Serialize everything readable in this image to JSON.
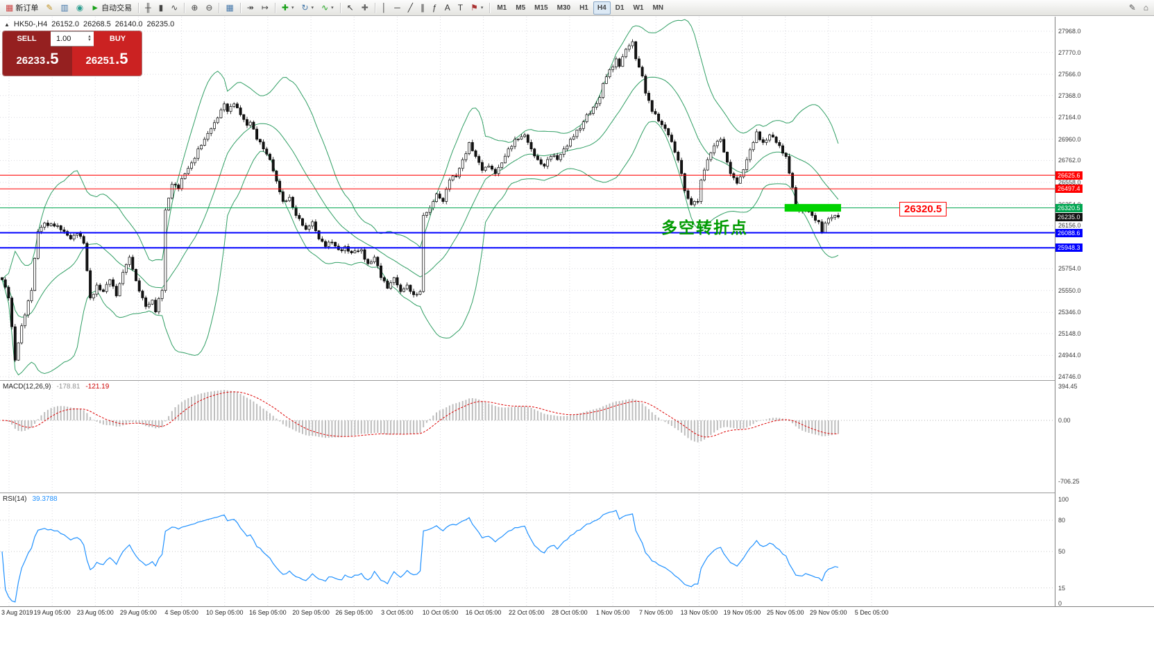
{
  "toolbar": {
    "left_items": [
      {
        "kind": "button",
        "name": "new-order-button",
        "icon": "order-ticket-icon",
        "glyph": "▦",
        "color": "#cc4444",
        "label": "新订单"
      },
      {
        "kind": "button",
        "name": "metaeditor-button",
        "icon": "pencil-icon",
        "glyph": "✎",
        "color": "#c09020"
      },
      {
        "kind": "button",
        "name": "market-watch-button",
        "icon": "chart-search-icon",
        "glyph": "▥",
        "color": "#4477aa"
      },
      {
        "kind": "button",
        "name": "community-button",
        "icon": "globe-icon",
        "glyph": "◉",
        "color": "#2a9d8f"
      },
      {
        "kind": "button",
        "name": "autotrade-button",
        "icon": "play-icon",
        "glyph": "►",
        "color": "#18a018",
        "label": "自动交易"
      },
      {
        "kind": "sep"
      },
      {
        "kind": "button",
        "name": "bar-chart-mode-button",
        "icon": "bar-chart-icon",
        "glyph": "╫",
        "color": "#444444"
      },
      {
        "kind": "button",
        "name": "candlestick-mode-button",
        "icon": "candlestick-icon",
        "glyph": "▮",
        "color": "#444444"
      },
      {
        "kind": "button",
        "name": "line-chart-mode-button",
        "icon": "line-chart-icon",
        "glyph": "∿",
        "color": "#444444"
      },
      {
        "kind": "sep"
      },
      {
        "kind": "button",
        "name": "zoom-in-button",
        "icon": "zoom-in-icon",
        "glyph": "⊕",
        "color": "#444444"
      },
      {
        "kind": "button",
        "name": "zoom-out-button",
        "icon": "zoom-out-icon",
        "glyph": "⊖",
        "color": "#444444"
      },
      {
        "kind": "sep"
      },
      {
        "kind": "button",
        "name": "tile-windows-button",
        "icon": "grid-icon",
        "glyph": "▦",
        "color": "#4477aa"
      },
      {
        "kind": "sep"
      },
      {
        "kind": "button",
        "name": "auto-scroll-button",
        "icon": "auto-scroll-icon",
        "glyph": "↠",
        "color": "#444444"
      },
      {
        "kind": "button",
        "name": "chart-shift-button",
        "icon": "chart-shift-icon",
        "glyph": "↦",
        "color": "#444444"
      },
      {
        "kind": "sep"
      },
      {
        "kind": "button",
        "name": "new-chart-button",
        "icon": "plus-icon",
        "glyph": "✚",
        "color": "#18a018",
        "dropdown": true
      },
      {
        "kind": "button",
        "name": "profiles-button",
        "icon": "profiles-icon",
        "glyph": "↻",
        "color": "#4477aa",
        "dropdown": true
      },
      {
        "kind": "button",
        "name": "indicators-button",
        "icon": "indicator-wave-icon",
        "glyph": "∿",
        "color": "#18a018",
        "dropdown": true
      },
      {
        "kind": "sep"
      },
      {
        "kind": "button",
        "name": "cursor-button",
        "icon": "cursor-icon",
        "glyph": "↖",
        "color": "#333333"
      },
      {
        "kind": "button",
        "name": "crosshair-button",
        "icon": "crosshair-icon",
        "glyph": "✚",
        "color": "#666666"
      },
      {
        "kind": "sep"
      },
      {
        "kind": "button",
        "name": "vertical-line-button",
        "icon": "vertical-line-icon",
        "glyph": "│",
        "color": "#333333"
      },
      {
        "kind": "button",
        "name": "horizontal-line-button",
        "icon": "horizontal-line-icon",
        "glyph": "─",
        "color": "#333333"
      },
      {
        "kind": "button",
        "name": "trendline-button",
        "icon": "trendline-icon",
        "glyph": "╱",
        "color": "#333333"
      },
      {
        "kind": "button",
        "name": "channel-button",
        "icon": "channel-icon",
        "glyph": "∥",
        "color": "#333333"
      },
      {
        "kind": "button",
        "name": "fibonacci-button",
        "icon": "fibonacci-icon",
        "glyph": "ƒ",
        "color": "#333333"
      },
      {
        "kind": "button",
        "name": "text-button",
        "icon": "text-icon",
        "glyph": "A",
        "color": "#333333"
      },
      {
        "kind": "button",
        "name": "label-button",
        "icon": "label-icon",
        "glyph": "T",
        "color": "#333333"
      },
      {
        "kind": "button",
        "name": "arrows-button",
        "icon": "flag-icon",
        "glyph": "⚑",
        "color": "#aa3333",
        "dropdown": true
      },
      {
        "kind": "sep"
      }
    ],
    "timeframes": [
      "M1",
      "M5",
      "M15",
      "M30",
      "H1",
      "H4",
      "D1",
      "W1",
      "MN"
    ],
    "active_timeframe": "H4",
    "right_items": [
      {
        "kind": "button",
        "name": "toolbar-extra-edit-button",
        "icon": "pencil-icon",
        "glyph": "✎",
        "color": "#555555"
      },
      {
        "kind": "button",
        "name": "toolbar-extra-home-button",
        "icon": "home-icon",
        "glyph": "⌂",
        "color": "#555555"
      }
    ]
  },
  "chart": {
    "title": {
      "marker": "▲",
      "symbol": "HK50-,H4",
      "open": "26152.0",
      "high": "26268.5",
      "low": "26140.0",
      "close": "26235.0"
    },
    "trade_panel": {
      "sell_label": "SELL",
      "buy_label": "BUY",
      "lot_value": "1.00",
      "sell_price_base": "26233",
      "sell_price_frac": ".5",
      "buy_price_base": "26251",
      "buy_price_frac": ".5"
    },
    "annotation": {
      "text": "多空转折点",
      "color": "#009b00"
    },
    "callout": {
      "text": "26320.5",
      "color": "#ff0000"
    },
    "y_axis_labels": [
      "27968.0",
      "27770.0",
      "27566.0",
      "27368.0",
      "27164.0",
      "26960.0",
      "26762.0",
      "26558.0",
      "26354.0",
      "26156.0",
      "25952.0",
      "25754.0",
      "25550.0",
      "25346.0",
      "25148.0",
      "24944.0",
      "24746.0"
    ],
    "hlines": [
      {
        "label": "26625.6",
        "price": 26625.6,
        "color": "#ff0000",
        "width": 1
      },
      {
        "label": "26497.4",
        "price": 26497.4,
        "color": "#ff0000",
        "width": 1
      },
      {
        "label": "26320.5",
        "price": 26320.5,
        "color": "#00a651",
        "width": 1
      },
      {
        "label": "26088.6",
        "price": 26088.6,
        "color": "#0000ff",
        "width": 2
      },
      {
        "label": "25948.3",
        "price": 25948.3,
        "color": "#0000ff",
        "width": 2
      }
    ],
    "current_price_tag": {
      "label": "26235.0",
      "price": 26235.0,
      "color": "#111111"
    },
    "highlight_bar": {
      "price": 26320.5,
      "start_index": 240,
      "end_index": 256,
      "color": "#00d300"
    },
    "dates": [
      "3 Aug 2019",
      "19 Aug 05:00",
      "23 Aug 05:00",
      "29 Aug 05:00",
      "4 Sep 05:00",
      "10 Sep 05:00",
      "16 Sep 05:00",
      "20 Sep 05:00",
      "26 Sep 05:00",
      "3 Oct 05:00",
      "10 Oct 05:00",
      "16 Oct 05:00",
      "22 Oct 05:00",
      "28 Oct 05:00",
      "1 Nov 05:00",
      "7 Nov 05:00",
      "13 Nov 05:00",
      "19 Nov 05:00",
      "25 Nov 05:00",
      "29 Nov 05:00",
      "5 Dec 05:00"
    ]
  },
  "chart_data": {
    "type": "candlestick",
    "symbol": "HK50-",
    "timeframe": "H4",
    "title": "HK50-,H4",
    "ohlc_current": {
      "open": 26152.0,
      "high": 26268.5,
      "low": 26140.0,
      "close": 26235.0
    },
    "bid": 26233.5,
    "ask": 26251.5,
    "y_range": [
      24746,
      27968
    ],
    "candle_count": 257,
    "close_anchors": [
      [
        0,
        25650
      ],
      [
        2,
        25480
      ],
      [
        4,
        24900
      ],
      [
        6,
        25220
      ],
      [
        9,
        25550
      ],
      [
        11,
        26100
      ],
      [
        13,
        26180
      ],
      [
        16,
        26150
      ],
      [
        19,
        26100
      ],
      [
        21,
        26030
      ],
      [
        23,
        26080
      ],
      [
        25,
        25990
      ],
      [
        27,
        25480
      ],
      [
        29,
        25600
      ],
      [
        31,
        25540
      ],
      [
        33,
        25650
      ],
      [
        35,
        25500
      ],
      [
        37,
        25720
      ],
      [
        39,
        25860
      ],
      [
        41,
        25640
      ],
      [
        44,
        25400
      ],
      [
        46,
        25460
      ],
      [
        47,
        25350
      ],
      [
        49,
        25550
      ],
      [
        50,
        26300
      ],
      [
        52,
        26540
      ],
      [
        54,
        26500
      ],
      [
        56,
        26640
      ],
      [
        58,
        26740
      ],
      [
        60,
        26870
      ],
      [
        62,
        26960
      ],
      [
        64,
        27060
      ],
      [
        66,
        27160
      ],
      [
        68,
        27290
      ],
      [
        69,
        27220
      ],
      [
        71,
        27290
      ],
      [
        73,
        27190
      ],
      [
        75,
        27090
      ],
      [
        76,
        27120
      ],
      [
        78,
        26960
      ],
      [
        80,
        26870
      ],
      [
        82,
        26770
      ],
      [
        84,
        26570
      ],
      [
        86,
        26380
      ],
      [
        88,
        26420
      ],
      [
        90,
        26250
      ],
      [
        93,
        26120
      ],
      [
        95,
        26190
      ],
      [
        97,
        26030
      ],
      [
        99,
        25960
      ],
      [
        101,
        26000
      ],
      [
        103,
        25930
      ],
      [
        105,
        25960
      ],
      [
        107,
        25900
      ],
      [
        110,
        25930
      ],
      [
        112,
        25800
      ],
      [
        114,
        25860
      ],
      [
        116,
        25670
      ],
      [
        118,
        25570
      ],
      [
        120,
        25670
      ],
      [
        122,
        25540
      ],
      [
        124,
        25600
      ],
      [
        126,
        25510
      ],
      [
        128,
        25540
      ],
      [
        129,
        26250
      ],
      [
        131,
        26320
      ],
      [
        133,
        26450
      ],
      [
        135,
        26380
      ],
      [
        137,
        26580
      ],
      [
        139,
        26610
      ],
      [
        141,
        26770
      ],
      [
        143,
        26930
      ],
      [
        145,
        26800
      ],
      [
        147,
        26670
      ],
      [
        149,
        26710
      ],
      [
        151,
        26640
      ],
      [
        153,
        26740
      ],
      [
        155,
        26870
      ],
      [
        157,
        26960
      ],
      [
        160,
        27000
      ],
      [
        162,
        26870
      ],
      [
        164,
        26770
      ],
      [
        166,
        26710
      ],
      [
        168,
        26800
      ],
      [
        170,
        26770
      ],
      [
        172,
        26870
      ],
      [
        174,
        26960
      ],
      [
        177,
        27060
      ],
      [
        179,
        27190
      ],
      [
        181,
        27260
      ],
      [
        183,
        27350
      ],
      [
        184,
        27480
      ],
      [
        186,
        27610
      ],
      [
        188,
        27710
      ],
      [
        189,
        27640
      ],
      [
        191,
        27800
      ],
      [
        193,
        27870
      ],
      [
        194,
        27710
      ],
      [
        196,
        27550
      ],
      [
        197,
        27390
      ],
      [
        199,
        27220
      ],
      [
        201,
        27130
      ],
      [
        203,
        27060
      ],
      [
        204,
        27000
      ],
      [
        206,
        26840
      ],
      [
        208,
        26640
      ],
      [
        209,
        26480
      ],
      [
        211,
        26350
      ],
      [
        213,
        26380
      ],
      [
        214,
        26580
      ],
      [
        216,
        26770
      ],
      [
        218,
        26900
      ],
      [
        220,
        26960
      ],
      [
        221,
        26840
      ],
      [
        223,
        26640
      ],
      [
        225,
        26550
      ],
      [
        226,
        26610
      ],
      [
        228,
        26770
      ],
      [
        230,
        26930
      ],
      [
        231,
        27030
      ],
      [
        233,
        26930
      ],
      [
        235,
        27000
      ],
      [
        237,
        26930
      ],
      [
        238,
        26900
      ],
      [
        240,
        26800
      ],
      [
        242,
        26510
      ],
      [
        243,
        26320
      ],
      [
        245,
        26290
      ],
      [
        246,
        26320
      ],
      [
        248,
        26250
      ],
      [
        250,
        26190
      ],
      [
        251,
        26090
      ],
      [
        253,
        26220
      ],
      [
        255,
        26250
      ],
      [
        256,
        26235
      ]
    ],
    "overlays": {
      "bollinger": {
        "period": 20,
        "deviation": 2,
        "color": "#2f9e63"
      }
    },
    "horizontal_levels": [
      26625.6,
      26497.4,
      26320.5,
      26088.6,
      25948.3
    ],
    "indicators": [
      {
        "name": "MACD",
        "params": [
          12,
          26,
          9
        ],
        "current_values": [
          -178.81,
          -121.19
        ],
        "scale": [
          -706.25,
          394.45
        ]
      },
      {
        "name": "RSI",
        "params": [
          14
        ],
        "current_value": 39.3788,
        "scale": [
          0,
          100
        ]
      }
    ]
  },
  "macd_panel": {
    "name": "MACD(12,26,9)",
    "value_main": "-178.81",
    "value_signal": "-121.19",
    "axis_labels": [
      "394.45",
      "0.00",
      "-706.25"
    ]
  },
  "rsi_panel": {
    "name": "RSI(14)",
    "value": "39.3788",
    "axis_labels": [
      "100",
      "80",
      "50",
      "15",
      "0"
    ],
    "levels": [
      80,
      50,
      15
    ]
  },
  "colors": {
    "grid": "#d9d9df",
    "bull": "#ffffff",
    "bear": "#141414",
    "candle_stroke": "#000000",
    "band": "#2f9e63",
    "macd_hist": "#bdbdbd",
    "macd_signal": "#dd0000",
    "rsi_line": "#1e90ff",
    "axis_text": "#3a3a3a"
  }
}
